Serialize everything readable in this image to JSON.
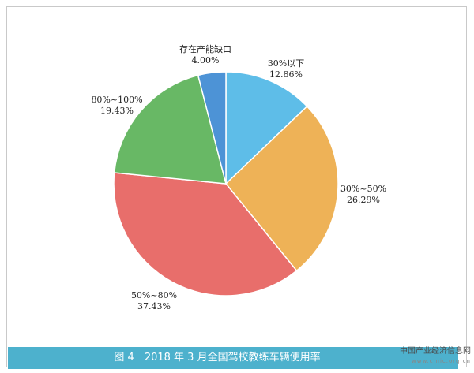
{
  "figure": {
    "caption": "图 4　2018 年 3 月全国驾校教练车辆使用率"
  },
  "watermark": {
    "cn": "中国产业经济信息网",
    "en": "www.cinic.org.cn"
  },
  "chart_data": {
    "type": "pie",
    "title": "",
    "start_angle_deg": 0,
    "direction": "clockwise",
    "slices": [
      {
        "label": "30%以下",
        "value": 12.86,
        "value_label": "12.86%",
        "color": "#5ebde8"
      },
      {
        "label": "30%~50%",
        "value": 26.29,
        "value_label": "26.29%",
        "color": "#eeb257"
      },
      {
        "label": "50%~80%",
        "value": 37.43,
        "value_label": "37.43%",
        "color": "#e86e6b"
      },
      {
        "label": "80%~100%",
        "value": 19.43,
        "value_label": "19.43%",
        "color": "#68b865"
      },
      {
        "label": "存在产能缺口",
        "value": 4.0,
        "value_label": "4.00%",
        "color": "#4d93d6"
      }
    ]
  }
}
